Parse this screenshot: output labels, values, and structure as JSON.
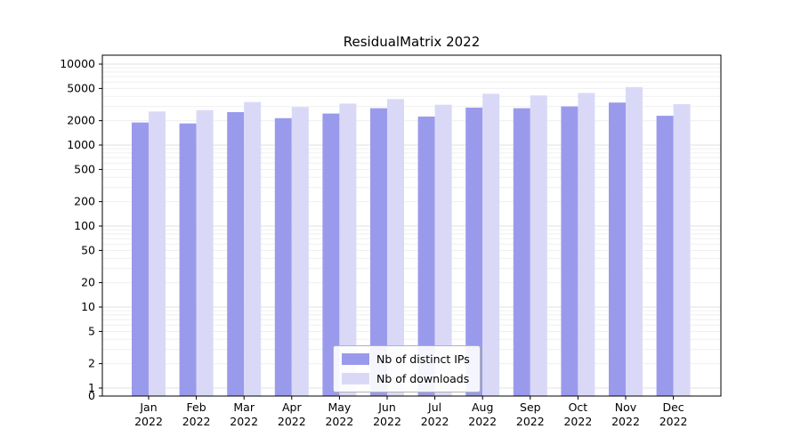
{
  "chart_data": {
    "type": "bar",
    "title": "ResidualMatrix 2022",
    "categories": [
      "Jan",
      "Feb",
      "Mar",
      "Apr",
      "May",
      "Jun",
      "Jul",
      "Aug",
      "Sep",
      "Oct",
      "Nov",
      "Dec"
    ],
    "category_year": "2022",
    "series": [
      {
        "name": "Nb of distinct IPs",
        "color": "#9a9aec",
        "values": [
          1900,
          1850,
          2550,
          2150,
          2450,
          2850,
          2250,
          2900,
          2850,
          3000,
          3350,
          2300
        ]
      },
      {
        "name": "Nb of downloads",
        "color": "#d9d9f7",
        "values": [
          2600,
          2700,
          3400,
          2950,
          3250,
          3700,
          3150,
          4300,
          4100,
          4400,
          5200,
          3200
        ]
      }
    ],
    "yscale": "symlog",
    "y_ticks": [
      0,
      1,
      2,
      5,
      10,
      20,
      50,
      100,
      200,
      500,
      1000,
      2000,
      5000,
      10000
    ],
    "ylim": [
      0,
      13000
    ],
    "grid": "horizontal",
    "legend_position": "lower center",
    "xlabel": "",
    "ylabel": ""
  },
  "colors": {
    "grid_major": "#e2e2e2",
    "grid_minor": "#efefef",
    "axis": "#000000",
    "text": "#000000"
  }
}
